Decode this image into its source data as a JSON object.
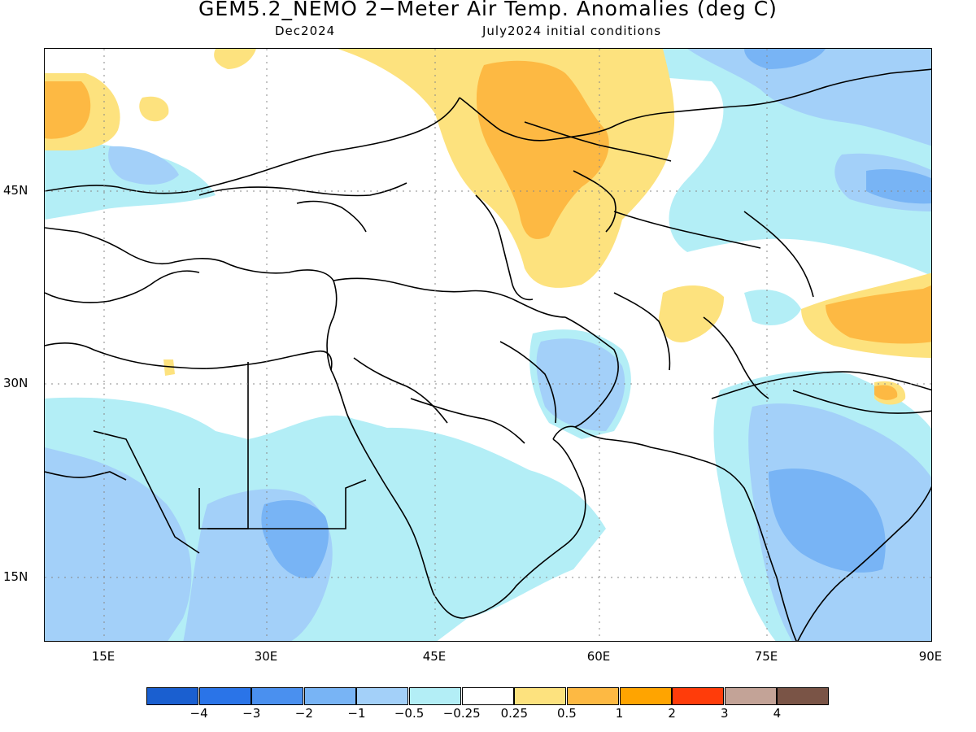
{
  "title": "GEM5.2_NEMO 2−Meter Air Temp. Anomalies (deg C)",
  "subtitle_left": "Dec2024",
  "subtitle_right": "July2024 initial conditions",
  "lat_labels": [
    "45N",
    "30N",
    "15N"
  ],
  "lon_labels": [
    "15E",
    "30E",
    "45E",
    "60E",
    "75E",
    "90E"
  ],
  "legend": {
    "colors": [
      "#1a5fd0",
      "#2a74e8",
      "#4a90ef",
      "#78b4f5",
      "#a3d0f9",
      "#b3eef6",
      "#ffffff",
      "#fde27e",
      "#fdb943",
      "#ffa400",
      "#ff3c0a",
      "#c3a397",
      "#7a5446"
    ],
    "labels": [
      "−4",
      "−3",
      "−2",
      "−1",
      "−0.5",
      "−0.25",
      "0.25",
      "0.5",
      "1",
      "2",
      "3",
      "4"
    ]
  }
}
